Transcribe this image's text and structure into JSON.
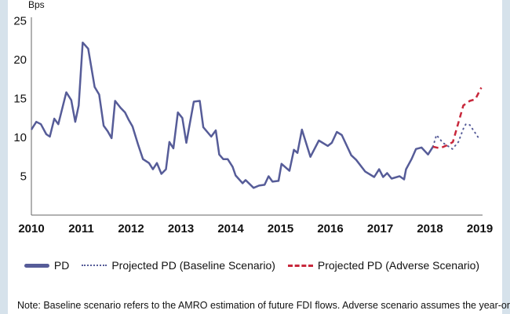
{
  "chart_data": {
    "type": "line",
    "title": "",
    "ylabel": "Bps",
    "xlabel": "",
    "ylim": [
      0,
      25
    ],
    "xlim": [
      2010,
      2019
    ],
    "yticks": [
      "5",
      "10",
      "15",
      "20",
      "25"
    ],
    "xticks": [
      "2010",
      "2011",
      "2012",
      "2013",
      "2014",
      "2015",
      "2016",
      "2017",
      "2018",
      "2019"
    ],
    "grid": false,
    "legend_position": "bottom",
    "colors": {
      "pd": "#565c98",
      "baseline": "#565c98",
      "adverse": "#c8283c"
    },
    "series": [
      {
        "name": "PD",
        "style": "solid",
        "points": [
          [
            2010.0,
            11.0
          ],
          [
            2010.04,
            11.4
          ],
          [
            2010.1,
            12.0
          ],
          [
            2010.19,
            11.7
          ],
          [
            2010.3,
            10.4
          ],
          [
            2010.37,
            10.1
          ],
          [
            2010.46,
            12.4
          ],
          [
            2010.54,
            11.7
          ],
          [
            2010.7,
            15.8
          ],
          [
            2010.8,
            14.8
          ],
          [
            2010.88,
            12.0
          ],
          [
            2010.95,
            14.1
          ],
          [
            2011.03,
            22.2
          ],
          [
            2011.14,
            21.4
          ],
          [
            2011.27,
            16.5
          ],
          [
            2011.36,
            15.5
          ],
          [
            2011.45,
            11.5
          ],
          [
            2011.53,
            10.8
          ],
          [
            2011.61,
            9.9
          ],
          [
            2011.68,
            14.7
          ],
          [
            2011.79,
            13.8
          ],
          [
            2011.88,
            13.2
          ],
          [
            2011.95,
            12.3
          ],
          [
            2012.03,
            11.4
          ],
          [
            2012.14,
            9.1
          ],
          [
            2012.24,
            7.2
          ],
          [
            2012.36,
            6.7
          ],
          [
            2012.44,
            5.9
          ],
          [
            2012.52,
            6.7
          ],
          [
            2012.61,
            5.3
          ],
          [
            2012.7,
            5.9
          ],
          [
            2012.77,
            9.4
          ],
          [
            2012.85,
            8.6
          ],
          [
            2012.94,
            13.2
          ],
          [
            2013.03,
            12.5
          ],
          [
            2013.11,
            9.3
          ],
          [
            2013.26,
            14.6
          ],
          [
            2013.38,
            14.7
          ],
          [
            2013.45,
            11.3
          ],
          [
            2013.61,
            10.1
          ],
          [
            2013.7,
            10.9
          ],
          [
            2013.77,
            7.8
          ],
          [
            2013.85,
            7.2
          ],
          [
            2013.94,
            7.2
          ],
          [
            2014.04,
            6.2
          ],
          [
            2014.1,
            5.1
          ],
          [
            2014.24,
            4.1
          ],
          [
            2014.3,
            4.5
          ],
          [
            2014.46,
            3.5
          ],
          [
            2014.57,
            3.8
          ],
          [
            2014.68,
            3.9
          ],
          [
            2014.76,
            5.0
          ],
          [
            2014.84,
            4.3
          ],
          [
            2014.96,
            4.4
          ],
          [
            2015.02,
            6.6
          ],
          [
            2015.18,
            5.7
          ],
          [
            2015.27,
            8.4
          ],
          [
            2015.34,
            8.0
          ],
          [
            2015.43,
            11.0
          ],
          [
            2015.6,
            7.5
          ],
          [
            2015.77,
            9.6
          ],
          [
            2015.95,
            8.9
          ],
          [
            2016.03,
            9.3
          ],
          [
            2016.13,
            10.7
          ],
          [
            2016.23,
            10.3
          ],
          [
            2016.42,
            7.7
          ],
          [
            2016.52,
            7.1
          ],
          [
            2016.7,
            5.6
          ],
          [
            2016.88,
            4.9
          ],
          [
            2016.98,
            5.9
          ],
          [
            2017.06,
            4.9
          ],
          [
            2017.14,
            5.4
          ],
          [
            2017.23,
            4.7
          ],
          [
            2017.39,
            5.0
          ],
          [
            2017.48,
            4.6
          ],
          [
            2017.52,
            5.9
          ],
          [
            2017.63,
            7.2
          ],
          [
            2017.72,
            8.5
          ],
          [
            2017.83,
            8.7
          ],
          [
            2017.96,
            7.8
          ],
          [
            2018.06,
            8.8
          ]
        ]
      },
      {
        "name": "Projected PD (Baseline Scenario)",
        "style": "dotted",
        "points": [
          [
            2018.06,
            8.8
          ],
          [
            2018.13,
            10.3
          ],
          [
            2018.26,
            9.3
          ],
          [
            2018.45,
            8.5
          ],
          [
            2018.57,
            9.4
          ],
          [
            2018.67,
            11.1
          ],
          [
            2018.72,
            11.7
          ],
          [
            2018.8,
            11.6
          ],
          [
            2019.0,
            9.7
          ]
        ]
      },
      {
        "name": "Projected PD (Adverse Scenario)",
        "style": "dashed",
        "points": [
          [
            2018.06,
            8.8
          ],
          [
            2018.2,
            8.6
          ],
          [
            2018.35,
            9.0
          ],
          [
            2018.46,
            9.4
          ],
          [
            2018.67,
            14.1
          ],
          [
            2018.8,
            14.7
          ],
          [
            2018.91,
            14.9
          ],
          [
            2019.03,
            16.4
          ]
        ]
      }
    ]
  },
  "legend": {
    "pd": "PD",
    "baseline": "Projected PD (Baseline Scenario)",
    "adverse": "Projected PD (Adverse Scenario)"
  },
  "note": "Note: Baseline scenario refers to the AMRO estimation of future FDI flows. Adverse scenario assumes the year-on-year"
}
